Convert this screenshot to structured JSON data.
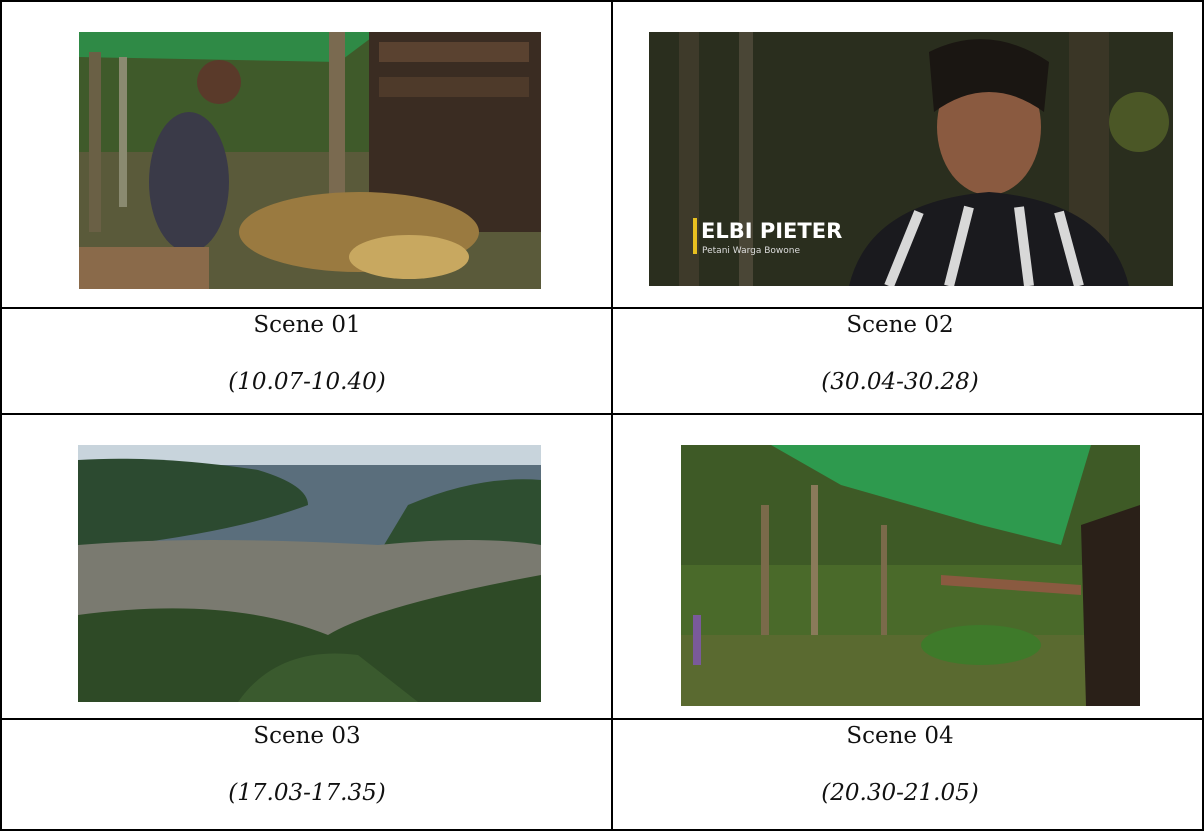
{
  "table": {
    "cells": [
      {
        "scene": "Scene 01",
        "time": "(10.07-10.40)"
      },
      {
        "scene": "Scene 02",
        "time": "(30.04-30.28)",
        "caption_name": "ELBI PIETER",
        "caption_role": "Petani Warga Bowone"
      },
      {
        "scene": "Scene 03",
        "time": "(17.03-17.35)"
      },
      {
        "scene": "Scene 04",
        "time": "(20.30-21.05)"
      }
    ]
  }
}
